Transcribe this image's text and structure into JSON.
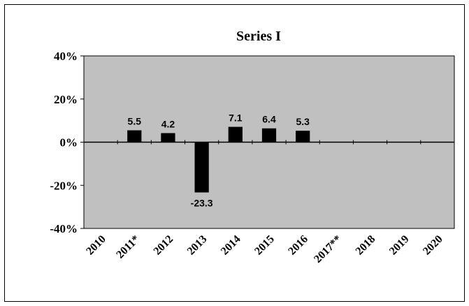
{
  "chart_data": {
    "type": "bar",
    "title": "Series I",
    "categories": [
      "2010",
      "2011*",
      "2012",
      "2013",
      "2014",
      "2015",
      "2016",
      "2017**",
      "2018",
      "2019",
      "2020"
    ],
    "values": [
      null,
      5.5,
      4.2,
      -23.3,
      7.1,
      6.4,
      5.3,
      null,
      null,
      null,
      null
    ],
    "data_labels": [
      "",
      "5.5",
      "4.2",
      "-23.3",
      "7.1",
      "6.4",
      "5.3",
      "",
      "",
      "",
      ""
    ],
    "ylim": [
      -40,
      40
    ],
    "yticks": [
      40,
      20,
      0,
      -20,
      -40
    ],
    "ytick_labels": [
      "40%",
      "20%",
      "0%",
      "-20%",
      "-40%"
    ],
    "xlabel": "",
    "ylabel": "",
    "grid": false,
    "legend": "none",
    "colors": {
      "plot_background": "#c0c0c0",
      "bar": "#000000",
      "axis": "#000000",
      "page_background": "#ffffff"
    }
  }
}
